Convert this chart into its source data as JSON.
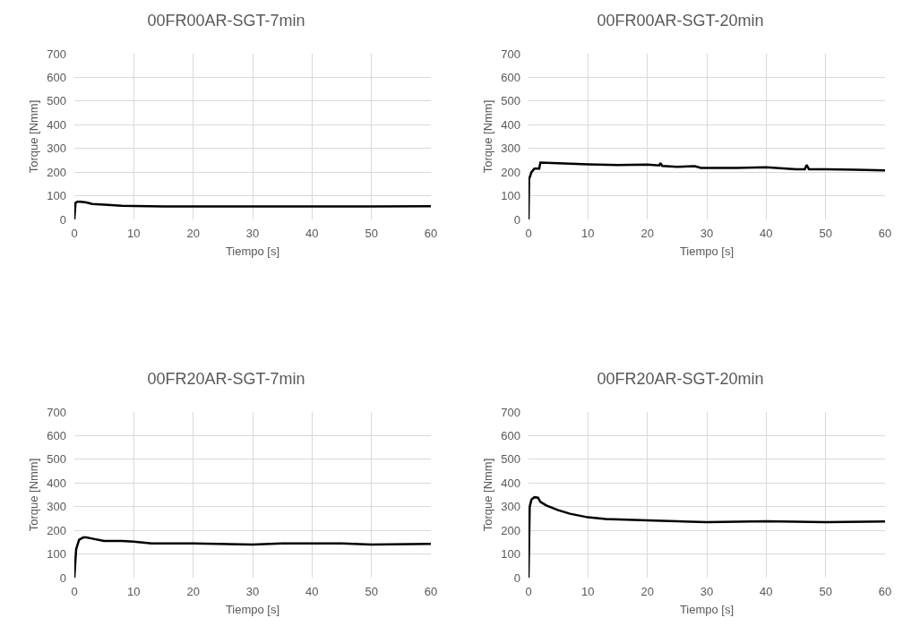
{
  "chart_data": [
    {
      "type": "line",
      "title": "00FR00AR-SGT-7min",
      "xlabel": "Tiempo [s]",
      "ylabel": "Torque [Nmm]",
      "xlim": [
        0,
        60
      ],
      "xticks": [
        0,
        10,
        20,
        30,
        40,
        50,
        60
      ],
      "ylim": [
        0,
        700
      ],
      "yticks": [
        0,
        100,
        200,
        300,
        400,
        500,
        600,
        700
      ],
      "grid": true,
      "marker": "none",
      "line_style": "solid",
      "series": [
        {
          "color": "#000000",
          "x": [
            0,
            0.2,
            0.5,
            1,
            2,
            3,
            5,
            8,
            10,
            15,
            20,
            30,
            40,
            50,
            60
          ],
          "values": [
            0,
            70,
            75,
            75,
            72,
            65,
            62,
            58,
            57,
            55,
            55,
            55,
            55,
            55,
            56
          ]
        }
      ]
    },
    {
      "type": "line",
      "title": "00FR00AR-SGT-20min",
      "xlabel": "Tiempo [s]",
      "ylabel": "Torque [Nmm]",
      "xlim": [
        0,
        60
      ],
      "xticks": [
        0,
        10,
        20,
        30,
        40,
        50,
        60
      ],
      "ylim": [
        0,
        700
      ],
      "yticks": [
        0,
        100,
        200,
        300,
        400,
        500,
        600,
        700
      ],
      "grid": true,
      "marker": "none",
      "line_style": "solid",
      "series": [
        {
          "color": "#000000",
          "x": [
            0,
            0.1,
            0.5,
            1,
            1.8,
            2,
            5,
            10,
            15,
            20,
            22,
            22.2,
            22.5,
            25,
            28,
            29,
            35,
            40,
            45,
            46.5,
            46.8,
            47.2,
            50,
            55,
            60
          ],
          "values": [
            0,
            170,
            200,
            215,
            215,
            240,
            237,
            233,
            230,
            232,
            228,
            238,
            226,
            222,
            225,
            218,
            218,
            220,
            212,
            212,
            230,
            212,
            212,
            210,
            207
          ]
        }
      ]
    },
    {
      "type": "line",
      "title": "00FR20AR-SGT-7min",
      "xlabel": "Tiempo [s]",
      "ylabel": "Torque [Nmm]",
      "xlim": [
        0,
        60
      ],
      "xticks": [
        0,
        10,
        20,
        30,
        40,
        50,
        60
      ],
      "ylim": [
        0,
        700
      ],
      "yticks": [
        0,
        100,
        200,
        300,
        400,
        500,
        600,
        700
      ],
      "grid": true,
      "marker": "none",
      "line_style": "solid",
      "series": [
        {
          "color": "#000000",
          "x": [
            0,
            0.3,
            0.8,
            1.5,
            2,
            3,
            5,
            8,
            10,
            13,
            20,
            30,
            35,
            45,
            50,
            60
          ],
          "values": [
            0,
            120,
            160,
            170,
            170,
            165,
            155,
            155,
            152,
            145,
            145,
            140,
            145,
            145,
            140,
            143
          ]
        }
      ]
    },
    {
      "type": "line",
      "title": "00FR20AR-SGT-20min",
      "xlabel": "Tiempo [s]",
      "ylabel": "Torque [Nmm]",
      "xlim": [
        0,
        60
      ],
      "xticks": [
        0,
        10,
        20,
        30,
        40,
        50,
        60
      ],
      "ylim": [
        0,
        700
      ],
      "yticks": [
        0,
        100,
        200,
        300,
        400,
        500,
        600,
        700
      ],
      "grid": true,
      "marker": "none",
      "line_style": "solid",
      "series": [
        {
          "color": "#000000",
          "x": [
            0,
            0.2,
            0.5,
            1,
            1.6,
            2,
            3,
            5,
            7,
            10,
            13,
            20,
            30,
            40,
            50,
            60
          ],
          "values": [
            0,
            300,
            330,
            340,
            338,
            320,
            305,
            285,
            270,
            255,
            248,
            242,
            235,
            238,
            235,
            237
          ]
        }
      ]
    }
  ]
}
